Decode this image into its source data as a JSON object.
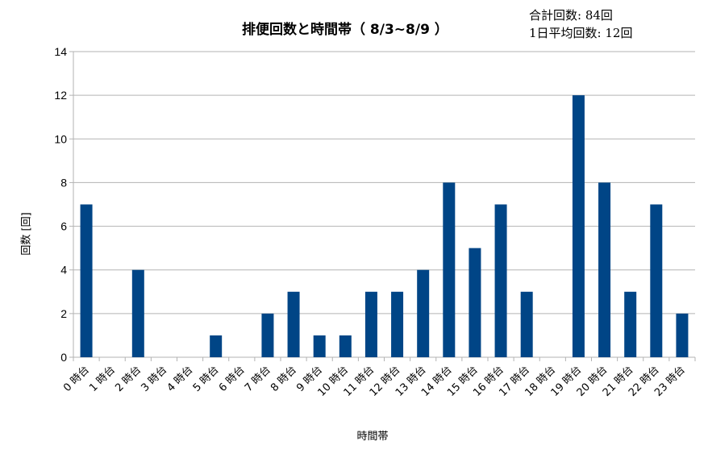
{
  "chart_data": {
    "type": "bar",
    "title": "排便回数と時間帯（ 8/3~8/9 ）",
    "annotations": [
      "合計回数: 84回",
      "1日平均回数: 12回"
    ],
    "xlabel": "時間帯",
    "ylabel": "回数 [回]",
    "ylim": [
      0,
      14
    ],
    "yticks": [
      0,
      2,
      4,
      6,
      8,
      10,
      12,
      14
    ],
    "grid": true,
    "legend": "none",
    "bar_color": "#004586",
    "categories": [
      "0 時台",
      "1 時台",
      "2 時台",
      "3 時台",
      "4 時台",
      "5 時台",
      "6 時台",
      "7 時台",
      "8 時台",
      "9 時台",
      "10 時台",
      "11 時台",
      "12 時台",
      "13 時台",
      "14 時台",
      "15 時台",
      "16 時台",
      "17 時台",
      "18 時台",
      "19 時台",
      "20 時台",
      "21 時台",
      "22 時台",
      "23 時台"
    ],
    "values": [
      7,
      0,
      4,
      0,
      0,
      1,
      0,
      2,
      3,
      1,
      1,
      3,
      3,
      4,
      8,
      5,
      7,
      3,
      0,
      12,
      8,
      3,
      7,
      2
    ]
  }
}
